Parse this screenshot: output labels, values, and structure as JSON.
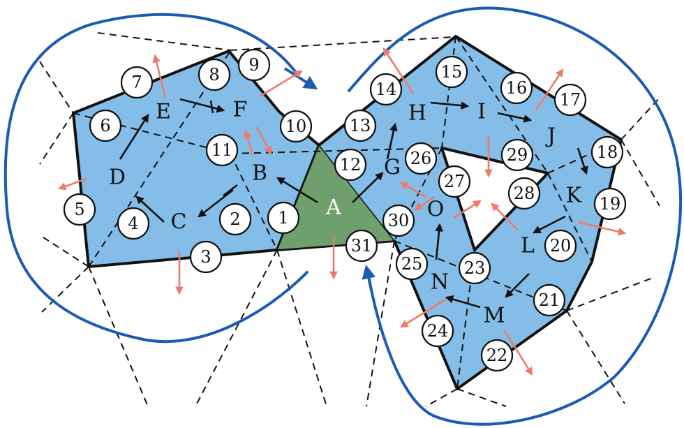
{
  "figure": {
    "colors": {
      "region": "#83bde8",
      "seed": "#6e9f6d",
      "boundary": "#1b5bb3",
      "red_arrow": "#f07a6a",
      "black": "#111111"
    },
    "letters": [
      "A",
      "B",
      "C",
      "D",
      "E",
      "F",
      "G",
      "H",
      "I",
      "J",
      "K",
      "L",
      "M",
      "N",
      "O"
    ],
    "numbers": [
      "1",
      "2",
      "3",
      "4",
      "5",
      "6",
      "7",
      "8",
      "9",
      "10",
      "11",
      "12",
      "13",
      "14",
      "15",
      "16",
      "17",
      "18",
      "19",
      "20",
      "21",
      "22",
      "23",
      "24",
      "25",
      "26",
      "27",
      "28",
      "29",
      "30",
      "31"
    ]
  }
}
